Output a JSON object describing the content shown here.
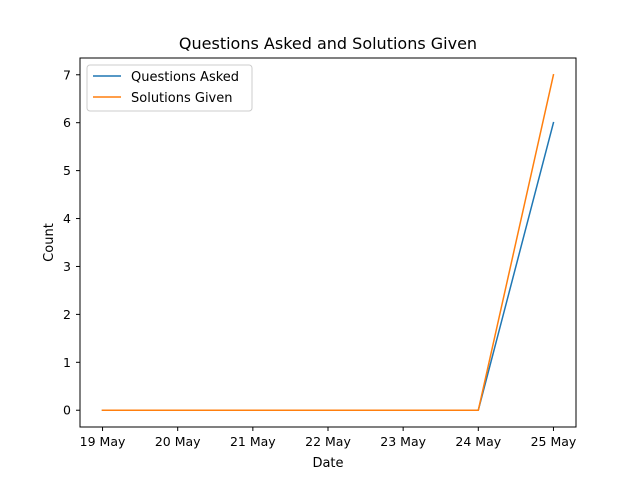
{
  "chart_data": {
    "type": "line",
    "title": "Questions Asked and Solutions Given",
    "xlabel": "Date",
    "ylabel": "Count",
    "x": [
      "19 May",
      "20 May",
      "21 May",
      "22 May",
      "23 May",
      "24 May",
      "25 May"
    ],
    "yticks": [
      "0",
      "1",
      "2",
      "3",
      "4",
      "5",
      "6",
      "7"
    ],
    "ylim": [
      -0.35,
      7.35
    ],
    "grid": false,
    "legend_position": "top-left",
    "series": [
      {
        "name": "Questions Asked",
        "color": "#1f77b4",
        "values": [
          0,
          0,
          0,
          0,
          0,
          0,
          6
        ]
      },
      {
        "name": "Solutions Given",
        "color": "#ff7f0e",
        "values": [
          0,
          0,
          0,
          0,
          0,
          0,
          7
        ]
      }
    ]
  }
}
